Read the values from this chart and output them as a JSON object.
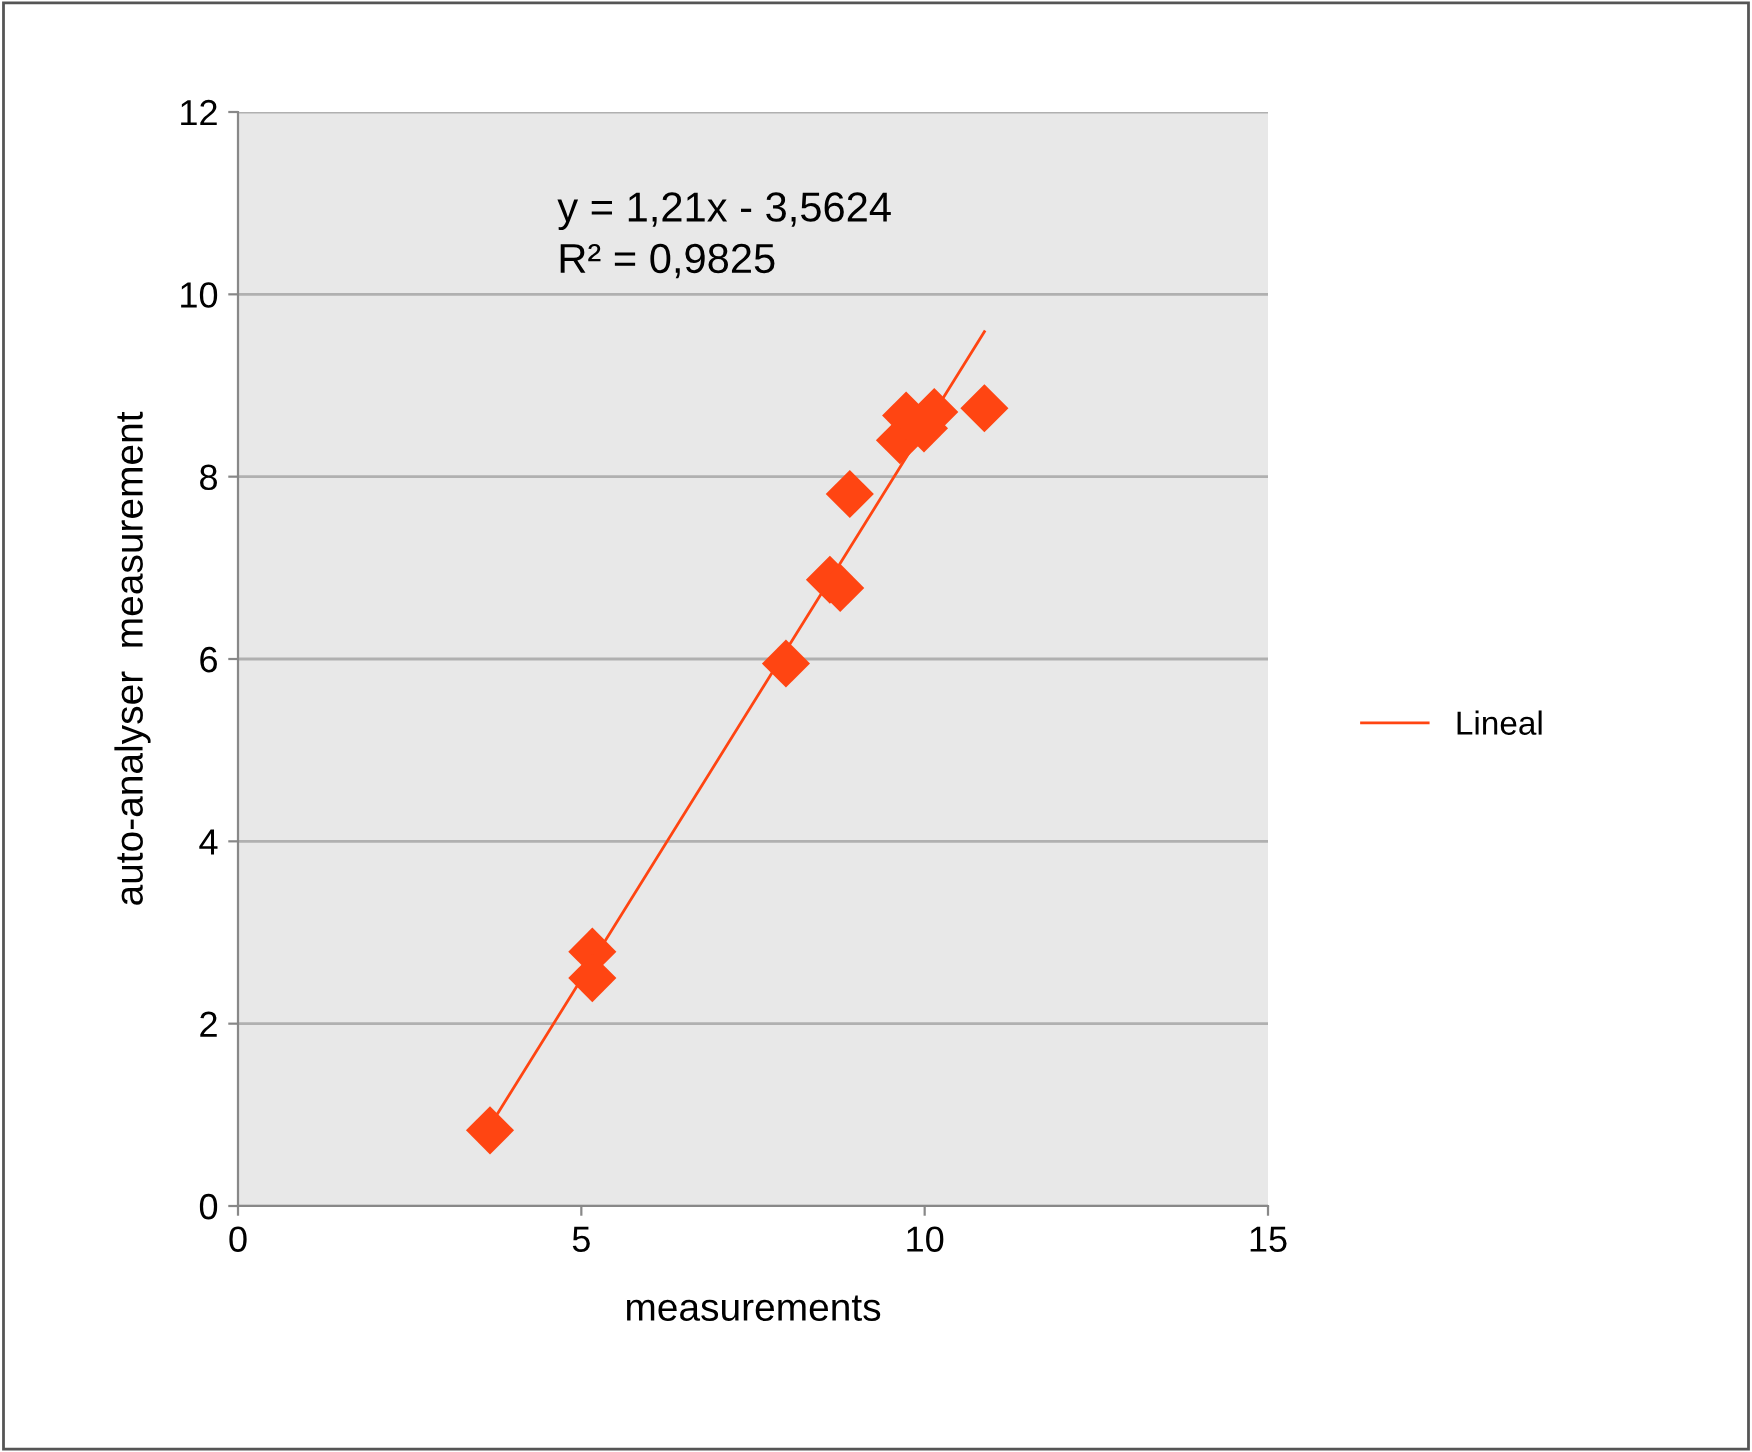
{
  "chart_data": {
    "type": "scatter",
    "xlabel": "measurements",
    "ylabel": "auto-analyser  measurement",
    "xlim": [
      0,
      15
    ],
    "xticks": [
      0,
      5,
      10,
      15
    ],
    "ylim": [
      0,
      12
    ],
    "yticks": [
      0,
      2,
      4,
      6,
      8,
      10,
      12
    ],
    "grid": "y",
    "legend": "right",
    "annotations": [
      "y = 1,21x - 3,5624",
      "R² = 0,9825"
    ],
    "series": [
      {
        "marker": "diamond",
        "color": "#ff4512",
        "x": [
          3.67,
          5.16,
          5.16,
          7.98,
          8.62,
          8.77,
          8.91,
          9.64,
          9.73,
          9.99,
          10.14,
          10.87
        ],
        "values": [
          0.83,
          2.79,
          2.5,
          5.95,
          6.87,
          6.78,
          7.81,
          8.4,
          8.67,
          8.53,
          8.71,
          8.75
        ]
      },
      {
        "type": "line",
        "marker": "none",
        "name": "Lineal",
        "color": "#ff4512",
        "x": [
          3.67,
          10.87
        ],
        "values": [
          0.88,
          9.59
        ]
      }
    ]
  }
}
